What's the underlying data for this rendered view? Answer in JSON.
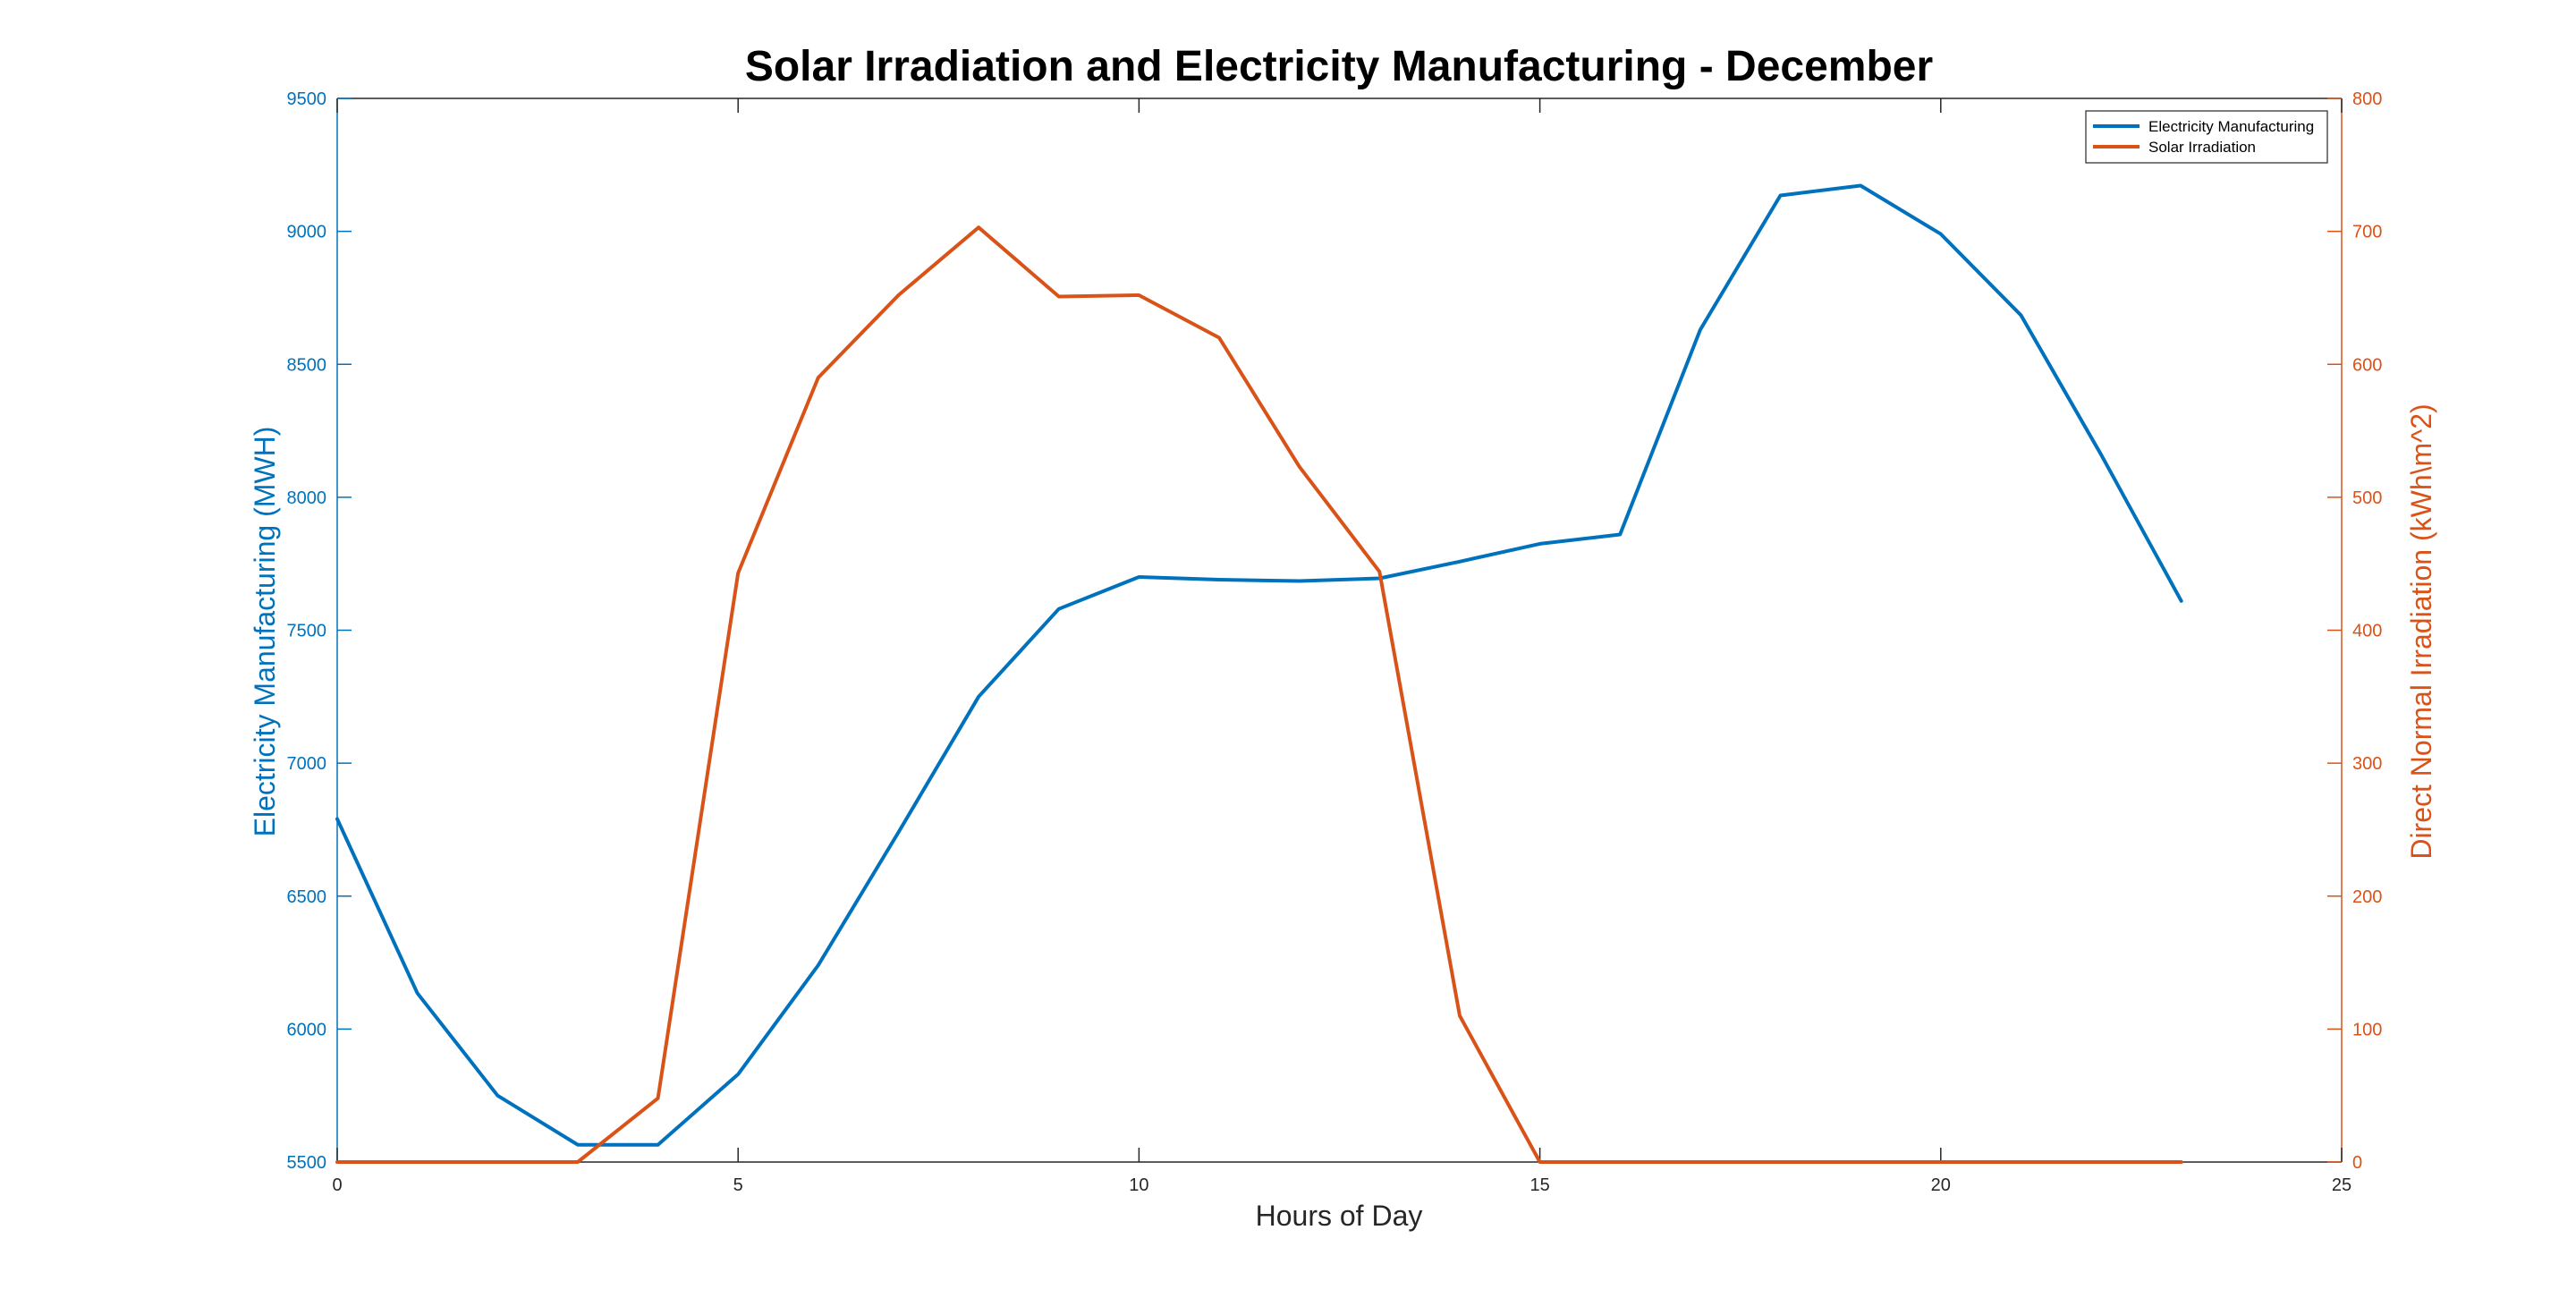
{
  "chart_data": {
    "type": "line",
    "title": "Solar Irradiation and Electricity Manufacturing - December",
    "xlabel": "Hours of Day",
    "ylabel_left": "Electricity Manufacturing (MWH)",
    "ylabel_right": "Direct Normal Irradiation (kWh\\m^2)",
    "xlim": [
      0,
      25
    ],
    "xticks": [
      0,
      5,
      10,
      15,
      20,
      25
    ],
    "ylim_left": [
      5500,
      9500
    ],
    "yticks_left": [
      5500,
      6000,
      6500,
      7000,
      7500,
      8000,
      8500,
      9000,
      9500
    ],
    "ylim_right": [
      0,
      800
    ],
    "yticks_right": [
      0,
      100,
      200,
      300,
      400,
      500,
      600,
      700,
      800
    ],
    "grid": false,
    "legend_position": "top-right",
    "x": [
      0,
      1,
      2,
      3,
      4,
      5,
      6,
      7,
      8,
      9,
      10,
      11,
      12,
      13,
      14,
      15,
      16,
      17,
      18,
      19,
      20,
      21,
      22,
      23
    ],
    "series": [
      {
        "name": "Electricity Manufacturing",
        "axis": "left",
        "color": "#0072BD",
        "values": [
          6790,
          6135,
          5750,
          5565,
          5565,
          5830,
          6240,
          6740,
          7250,
          7580,
          7700,
          7690,
          7685,
          7695,
          7758,
          7825,
          7860,
          8630,
          9135,
          9172,
          8990,
          8685,
          8160,
          7610
        ]
      },
      {
        "name": "Solar Irradiation",
        "axis": "right",
        "color": "#D95319",
        "values": [
          0,
          0,
          0,
          0,
          48,
          443,
          590,
          652,
          703,
          651,
          652,
          620,
          523,
          444,
          110,
          0,
          0,
          0,
          0,
          0,
          0,
          0,
          0,
          0
        ]
      }
    ]
  }
}
